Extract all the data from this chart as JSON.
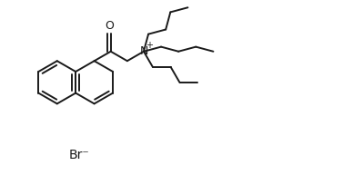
{
  "bg_color": "#ffffff",
  "line_color": "#1a1a1a",
  "line_width": 1.4,
  "text_color": "#1a1a1a",
  "br_label": "Br⁻",
  "br_fontsize": 10,
  "figsize": [
    3.88,
    1.93
  ],
  "dpi": 100,
  "xlim": [
    0,
    10
  ],
  "ylim": [
    0,
    5
  ]
}
